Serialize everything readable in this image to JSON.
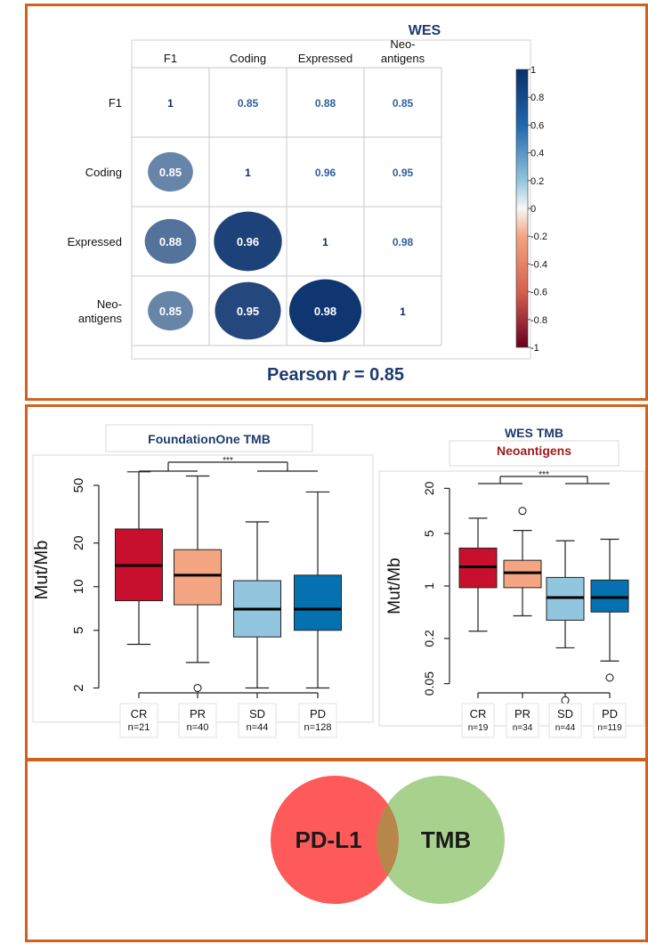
{
  "panels": {
    "top_footnote": "Pearson r = 0.85",
    "venn": {
      "left_label": "PD-L1",
      "right_label": "TMB",
      "left_color": "#ff5a5a",
      "right_color": "#a9d18e"
    }
  },
  "colors": {
    "panel_border": "#d0621d",
    "CR": "#c8102e",
    "PR": "#f4a582",
    "SD": "#92c5de",
    "PD": "#0571b0",
    "title_blue": "#1f3a6e",
    "title_red": "#9e1b1b"
  },
  "chart_data": [
    {
      "type": "heatmap",
      "title": "WES",
      "labels_top": [
        "F1",
        "Coding",
        "Expressed",
        "Neo-antigens"
      ],
      "labels_left": [
        "F1",
        "Coding",
        "Expressed",
        "Neo-antigens"
      ],
      "matrix": [
        [
          1,
          0.85,
          0.88,
          0.85
        ],
        [
          0.85,
          1,
          0.96,
          0.95
        ],
        [
          0.88,
          0.96,
          1,
          0.98
        ],
        [
          0.85,
          0.95,
          0.98,
          1
        ]
      ],
      "colorbar_ticks": [
        "1",
        "0.8",
        "0.6",
        "0.4",
        "0.2",
        "0",
        "-0.2",
        "-0.4",
        "-0.6",
        "-0.8",
        "-1"
      ],
      "lower_triangle": "circles",
      "upper_triangle": "numbers",
      "footnote": "Pearson r = 0.85"
    },
    {
      "type": "box",
      "title": "FoundationOne TMB",
      "ylabel": "Mut/Mb",
      "yscale": "log",
      "ylim": [
        1.7,
        100
      ],
      "yticks": [
        "2",
        "5",
        "10",
        "20",
        "50"
      ],
      "significance": "***",
      "categories": [
        "CR",
        "PR",
        "SD",
        "PD"
      ],
      "n_labels": [
        "n=21",
        "n=40",
        "n=44",
        "n=128"
      ],
      "boxes": [
        {
          "name": "CR",
          "whisker_low": 4,
          "q1": 8,
          "median": 14,
          "q3": 25,
          "whisker_high": 62,
          "outliers": []
        },
        {
          "name": "PR",
          "whisker_low": 3,
          "q1": 7.5,
          "median": 12,
          "q3": 18,
          "whisker_high": 58,
          "outliers": [
            2
          ]
        },
        {
          "name": "SD",
          "whisker_low": 2,
          "q1": 4.5,
          "median": 7,
          "q3": 11,
          "whisker_high": 28,
          "outliers": []
        },
        {
          "name": "PD",
          "whisker_low": 2,
          "q1": 5,
          "median": 7,
          "q3": 12,
          "whisker_high": 45,
          "outliers": []
        }
      ]
    },
    {
      "type": "box",
      "title": "WES TMB",
      "subtitle": "Neoantigens",
      "ylabel": "Mut/Mb",
      "yscale": "log",
      "ylim": [
        0.025,
        40
      ],
      "yticks": [
        "0.05",
        "0.2",
        "1",
        "5",
        "20"
      ],
      "significance": "***",
      "categories": [
        "CR",
        "PR",
        "SD",
        "PD"
      ],
      "n_labels": [
        "n=19",
        "n=34",
        "n=44",
        "n=119"
      ],
      "boxes": [
        {
          "name": "CR",
          "whisker_low": 0.25,
          "q1": 0.95,
          "median": 1.8,
          "q3": 3.2,
          "whisker_high": 8,
          "outliers": []
        },
        {
          "name": "PR",
          "whisker_low": 0.4,
          "q1": 0.95,
          "median": 1.5,
          "q3": 2.2,
          "whisker_high": 5.5,
          "outliers": [
            10
          ]
        },
        {
          "name": "SD",
          "whisker_low": 0.15,
          "q1": 0.35,
          "median": 0.7,
          "q3": 1.3,
          "whisker_high": 4,
          "outliers": [
            0.03
          ]
        },
        {
          "name": "PD",
          "whisker_low": 0.1,
          "q1": 0.45,
          "median": 0.7,
          "q3": 1.2,
          "whisker_high": 4.2,
          "outliers": [
            0.06
          ]
        }
      ]
    }
  ]
}
